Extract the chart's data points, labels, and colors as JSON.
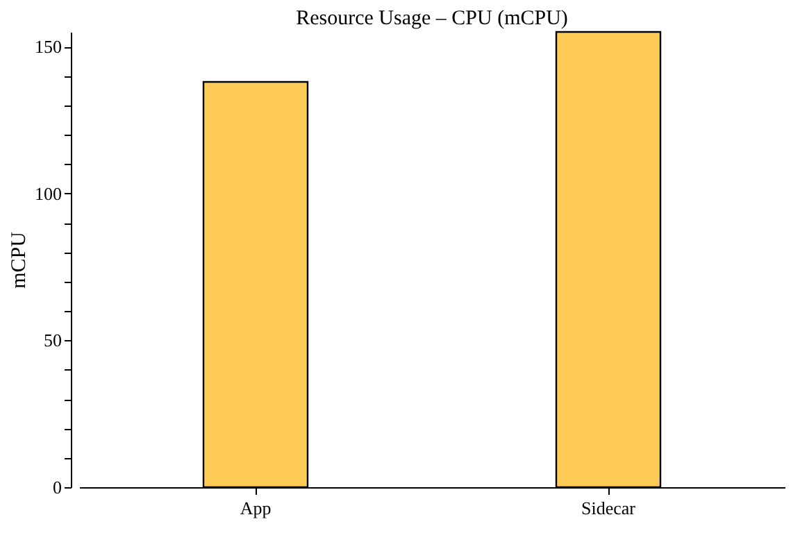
{
  "chart_data": {
    "type": "bar",
    "title": "Resource Usage – CPU (mCPU)",
    "ylabel": "mCPU",
    "categories": [
      "App",
      "Sidecar"
    ],
    "values": [
      138,
      155
    ],
    "color": "#fecb57",
    "ylim": [
      0,
      155
    ],
    "yticks": [
      0,
      {
        "value": 10,
        "label": null
      },
      {
        "value": 20,
        "label": null
      },
      {
        "value": 30,
        "label": null
      },
      {
        "value": 40,
        "label": null
      },
      50,
      {
        "value": 60,
        "label": null
      },
      {
        "value": 70,
        "label": null
      },
      {
        "value": 80,
        "label": null
      },
      {
        "value": 90,
        "label": null
      },
      100,
      {
        "value": 110,
        "label": null
      },
      {
        "value": 120,
        "label": null
      },
      {
        "value": 130,
        "label": null
      },
      {
        "value": 140,
        "label": null
      },
      150
    ],
    "grid": false
  }
}
